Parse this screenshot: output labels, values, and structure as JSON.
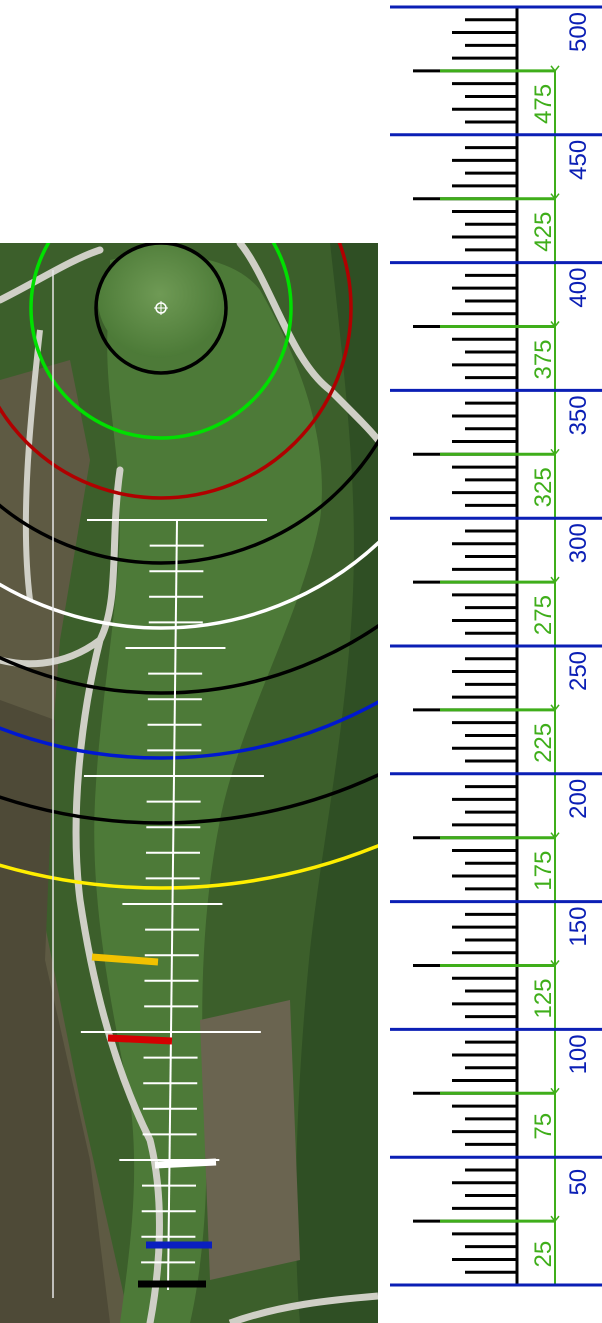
{
  "scale": {
    "unit_step": 5,
    "max_value": 500,
    "blue_labels": [
      "50",
      "100",
      "150",
      "200",
      "250",
      "300",
      "350",
      "400",
      "450",
      "500"
    ],
    "green_labels": [
      "25",
      "75",
      "125",
      "175",
      "225",
      "275",
      "325",
      "375",
      "425",
      "475"
    ],
    "colors": {
      "blue": "#0b1fb5",
      "green": "#3fae1a",
      "black": "#000000"
    }
  },
  "hole_map": {
    "grass_color": "#3f6a2c",
    "arc_colors": [
      "#00e000",
      "#000000",
      "#b00000",
      "#000000",
      "#ffffff",
      "#000000",
      "#0018d0",
      "#000000",
      "#ffee00"
    ],
    "tee_colors": [
      "#f2c200",
      "#d40000",
      "#ffffff",
      "#0a1fc0",
      "#000000"
    ],
    "pin_icon": "crosshair-icon"
  }
}
